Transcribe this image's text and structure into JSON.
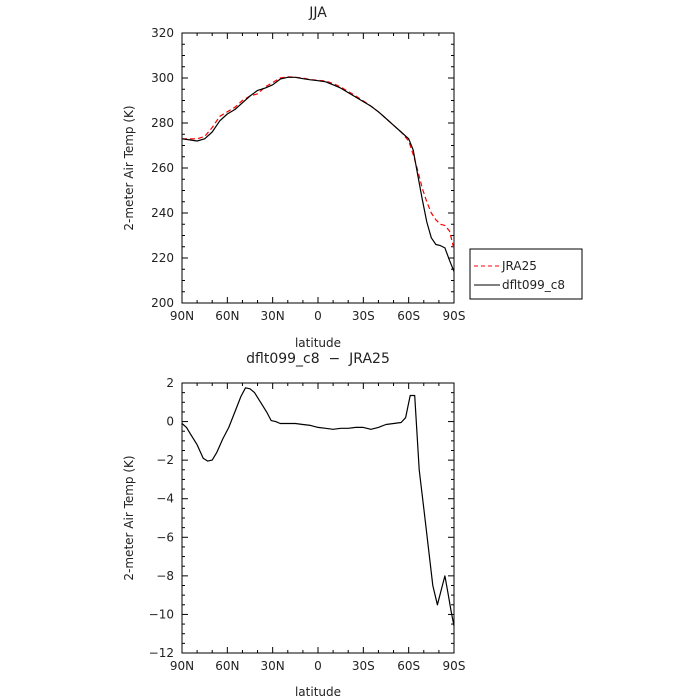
{
  "chart_data": [
    {
      "type": "line",
      "title": "JJA",
      "xlabel": "latitude",
      "ylabel": "2-meter Air Temp (K)",
      "x_ticks": [
        "90N",
        "60N",
        "30N",
        "0",
        "30S",
        "60S",
        "90S"
      ],
      "y_ticks": [
        "200",
        "220",
        "240",
        "260",
        "280",
        "300",
        "320"
      ],
      "xlim": [
        90,
        -90
      ],
      "ylim": [
        200,
        320
      ],
      "grid": false,
      "legend": {
        "placement": "right",
        "entries": [
          "JRA25",
          "dflt099_c8"
        ]
      },
      "series": [
        {
          "name": "JRA25",
          "color": "#ff0000",
          "style": "dashed",
          "points": [
            [
              90,
              273
            ],
            [
              85,
              273
            ],
            [
              80,
              273
            ],
            [
              75,
              274
            ],
            [
              70,
              278
            ],
            [
              65,
              283
            ],
            [
              60,
              285
            ],
            [
              55,
              287
            ],
            [
              50,
              290
            ],
            [
              45,
              292
            ],
            [
              40,
              293
            ],
            [
              35,
              296
            ],
            [
              30,
              298
            ],
            [
              25,
              300
            ],
            [
              20,
              300.5
            ],
            [
              15,
              300.3
            ],
            [
              10,
              300
            ],
            [
              5,
              299.3
            ],
            [
              0,
              299
            ],
            [
              -5,
              298.7
            ],
            [
              -10,
              297.5
            ],
            [
              -15,
              296
            ],
            [
              -20,
              294
            ],
            [
              -25,
              292
            ],
            [
              -30,
              289.8
            ],
            [
              -35,
              287.5
            ],
            [
              -40,
              285
            ],
            [
              -45,
              282
            ],
            [
              -50,
              279
            ],
            [
              -55,
              276
            ],
            [
              -60,
              272
            ],
            [
              -63,
              266
            ],
            [
              -66,
              259
            ],
            [
              -69,
              251
            ],
            [
              -72,
              245
            ],
            [
              -75,
              240
            ],
            [
              -78,
              237
            ],
            [
              -81,
              235
            ],
            [
              -84,
              234.5
            ],
            [
              -87,
              232
            ],
            [
              -90,
              224
            ]
          ]
        },
        {
          "name": "dflt099_c8",
          "color": "#000000",
          "style": "solid",
          "points": [
            [
              90,
              273
            ],
            [
              85,
              272.5
            ],
            [
              80,
              272
            ],
            [
              75,
              273
            ],
            [
              70,
              276
            ],
            [
              65,
              281
            ],
            [
              60,
              284
            ],
            [
              55,
              286
            ],
            [
              50,
              289
            ],
            [
              45,
              292
            ],
            [
              40,
              294.5
            ],
            [
              35,
              295.5
            ],
            [
              30,
              297
            ],
            [
              25,
              299.5
            ],
            [
              20,
              300.3
            ],
            [
              15,
              300.3
            ],
            [
              10,
              299.7
            ],
            [
              5,
              299.2
            ],
            [
              0,
              298.8
            ],
            [
              -5,
              298.3
            ],
            [
              -10,
              297
            ],
            [
              -15,
              295.5
            ],
            [
              -20,
              293.5
            ],
            [
              -25,
              291.5
            ],
            [
              -30,
              289.5
            ],
            [
              -35,
              287.5
            ],
            [
              -40,
              285
            ],
            [
              -45,
              282
            ],
            [
              -50,
              279
            ],
            [
              -55,
              276
            ],
            [
              -60,
              273
            ],
            [
              -63,
              268
            ],
            [
              -66,
              257
            ],
            [
              -69,
              246
            ],
            [
              -72,
              236
            ],
            [
              -75,
              229
            ],
            [
              -78,
              226
            ],
            [
              -81,
              225.5
            ],
            [
              -84,
              224.5
            ],
            [
              -87,
              219
            ],
            [
              -90,
              214
            ]
          ]
        }
      ]
    },
    {
      "type": "line",
      "title": "dflt099_c8  −  JRA25",
      "xlabel": "latitude",
      "ylabel": "2-meter Air Temp (K)",
      "x_ticks": [
        "90N",
        "60N",
        "30N",
        "0",
        "30S",
        "60S",
        "90S"
      ],
      "y_ticks": [
        "2",
        "0",
        "−2",
        "−4",
        "−6",
        "−8",
        "−10",
        "−12"
      ],
      "xlim": [
        90,
        -90
      ],
      "ylim": [
        -12,
        2
      ],
      "grid": false,
      "series": [
        {
          "color": "#000000",
          "style": "solid",
          "points": [
            [
              90,
              -0.1
            ],
            [
              87,
              -0.3
            ],
            [
              84,
              -0.7
            ],
            [
              80,
              -1.2
            ],
            [
              76,
              -1.9
            ],
            [
              73,
              -2.05
            ],
            [
              70,
              -2.0
            ],
            [
              67,
              -1.6
            ],
            [
              63,
              -0.9
            ],
            [
              59,
              -0.3
            ],
            [
              55,
              0.5
            ],
            [
              51,
              1.3
            ],
            [
              48,
              1.75
            ],
            [
              45,
              1.7
            ],
            [
              42,
              1.5
            ],
            [
              38,
              1.0
            ],
            [
              34,
              0.5
            ],
            [
              31,
              0.05
            ],
            [
              28,
              0.0
            ],
            [
              25,
              -0.1
            ],
            [
              20,
              -0.1
            ],
            [
              15,
              -0.1
            ],
            [
              10,
              -0.15
            ],
            [
              5,
              -0.2
            ],
            [
              0,
              -0.3
            ],
            [
              -5,
              -0.35
            ],
            [
              -10,
              -0.4
            ],
            [
              -15,
              -0.35
            ],
            [
              -20,
              -0.35
            ],
            [
              -25,
              -0.3
            ],
            [
              -30,
              -0.3
            ],
            [
              -35,
              -0.4
            ],
            [
              -40,
              -0.3
            ],
            [
              -45,
              -0.15
            ],
            [
              -50,
              -0.1
            ],
            [
              -55,
              -0.05
            ],
            [
              -58,
              0.2
            ],
            [
              -61,
              1.35
            ],
            [
              -64,
              1.35
            ],
            [
              -67,
              -2.5
            ],
            [
              -70,
              -4.5
            ],
            [
              -73,
              -6.5
            ],
            [
              -76,
              -8.5
            ],
            [
              -79,
              -9.5
            ],
            [
              -82,
              -8.6
            ],
            [
              -84,
              -8.0
            ],
            [
              -86,
              -8.9
            ],
            [
              -88,
              -9.8
            ],
            [
              -90,
              -10.6
            ]
          ]
        }
      ]
    }
  ]
}
